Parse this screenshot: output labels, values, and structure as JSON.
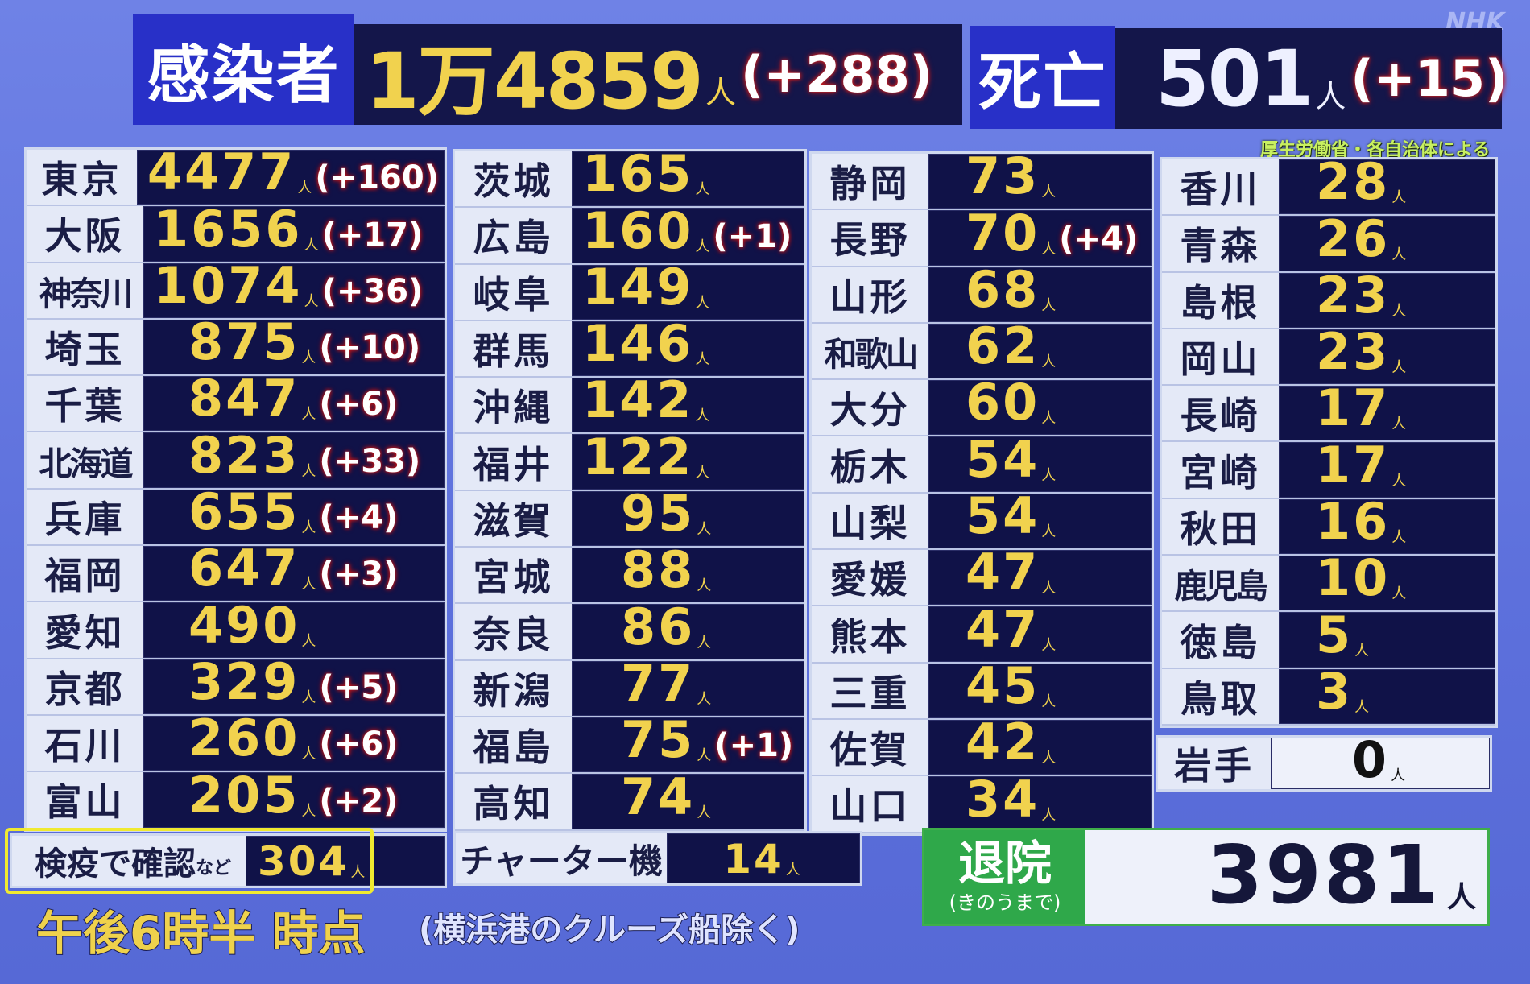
{
  "broadcaster": "NHK",
  "header": {
    "infected_label": "感染者",
    "infected_value": "1万4859",
    "infected_unit": "人",
    "infected_diff": "(+288)",
    "deaths_label": "死亡",
    "deaths_value": "501",
    "deaths_unit": "人",
    "deaths_diff": "(+15)",
    "source": "厚生労働省・各自治体による"
  },
  "unit": "人",
  "columns": [
    [
      {
        "name": "東京",
        "value": "4477",
        "diff": "(+160)"
      },
      {
        "name": "大阪",
        "value": "1656",
        "diff": "(+17)"
      },
      {
        "name": "神奈川",
        "value": "1074",
        "diff": "(+36)"
      },
      {
        "name": "埼玉",
        "value": "875",
        "diff": "(+10)"
      },
      {
        "name": "千葉",
        "value": "847",
        "diff": "(+6)"
      },
      {
        "name": "北海道",
        "value": "823",
        "diff": "(+33)"
      },
      {
        "name": "兵庫",
        "value": "655",
        "diff": "(+4)"
      },
      {
        "name": "福岡",
        "value": "647",
        "diff": "(+3)"
      },
      {
        "name": "愛知",
        "value": "490",
        "diff": ""
      },
      {
        "name": "京都",
        "value": "329",
        "diff": "(+5)"
      },
      {
        "name": "石川",
        "value": "260",
        "diff": "(+6)"
      },
      {
        "name": "富山",
        "value": "205",
        "diff": "(+2)"
      }
    ],
    [
      {
        "name": "茨城",
        "value": "165",
        "diff": ""
      },
      {
        "name": "広島",
        "value": "160",
        "diff": "(+1)"
      },
      {
        "name": "岐阜",
        "value": "149",
        "diff": ""
      },
      {
        "name": "群馬",
        "value": "146",
        "diff": ""
      },
      {
        "name": "沖縄",
        "value": "142",
        "diff": ""
      },
      {
        "name": "福井",
        "value": "122",
        "diff": ""
      },
      {
        "name": "滋賀",
        "value": "95",
        "diff": ""
      },
      {
        "name": "宮城",
        "value": "88",
        "diff": ""
      },
      {
        "name": "奈良",
        "value": "86",
        "diff": ""
      },
      {
        "name": "新潟",
        "value": "77",
        "diff": ""
      },
      {
        "name": "福島",
        "value": "75",
        "diff": "(+1)"
      },
      {
        "name": "高知",
        "value": "74",
        "diff": ""
      }
    ],
    [
      {
        "name": "静岡",
        "value": "73",
        "diff": ""
      },
      {
        "name": "長野",
        "value": "70",
        "diff": "(+4)"
      },
      {
        "name": "山形",
        "value": "68",
        "diff": ""
      },
      {
        "name": "和歌山",
        "value": "62",
        "diff": ""
      },
      {
        "name": "大分",
        "value": "60",
        "diff": ""
      },
      {
        "name": "栃木",
        "value": "54",
        "diff": ""
      },
      {
        "name": "山梨",
        "value": "54",
        "diff": ""
      },
      {
        "name": "愛媛",
        "value": "47",
        "diff": ""
      },
      {
        "name": "熊本",
        "value": "47",
        "diff": ""
      },
      {
        "name": "三重",
        "value": "45",
        "diff": ""
      },
      {
        "name": "佐賀",
        "value": "42",
        "diff": ""
      },
      {
        "name": "山口",
        "value": "34",
        "diff": ""
      }
    ],
    [
      {
        "name": "香川",
        "value": "28",
        "diff": ""
      },
      {
        "name": "青森",
        "value": "26",
        "diff": ""
      },
      {
        "name": "島根",
        "value": "23",
        "diff": ""
      },
      {
        "name": "岡山",
        "value": "23",
        "diff": ""
      },
      {
        "name": "長崎",
        "value": "17",
        "diff": ""
      },
      {
        "name": "宮崎",
        "value": "17",
        "diff": ""
      },
      {
        "name": "秋田",
        "value": "16",
        "diff": ""
      },
      {
        "name": "鹿児島",
        "value": "10",
        "diff": ""
      },
      {
        "name": "徳島",
        "value": "5",
        "diff": ""
      },
      {
        "name": "鳥取",
        "value": "3",
        "diff": ""
      }
    ]
  ],
  "iwate": {
    "name": "岩手",
    "value": "0"
  },
  "quarantine": {
    "label": "検疫で確認",
    "suffix": "など",
    "value": "304"
  },
  "charter": {
    "label": "チャーター機",
    "value": "14"
  },
  "discharged": {
    "label": "退院",
    "sublabel": "(きのうまで)",
    "value": "3981",
    "unit": "人"
  },
  "footer": {
    "time": "午後6時半 時点",
    "note": "(横浜港のクルーズ船除く)"
  },
  "colors": {
    "background": "#5d70dc",
    "value_cell": "#101248",
    "number": "#f1d24e",
    "label_box": "#2830c8",
    "discharged": "#2fa84a",
    "highlight": "#f0ea30"
  }
}
